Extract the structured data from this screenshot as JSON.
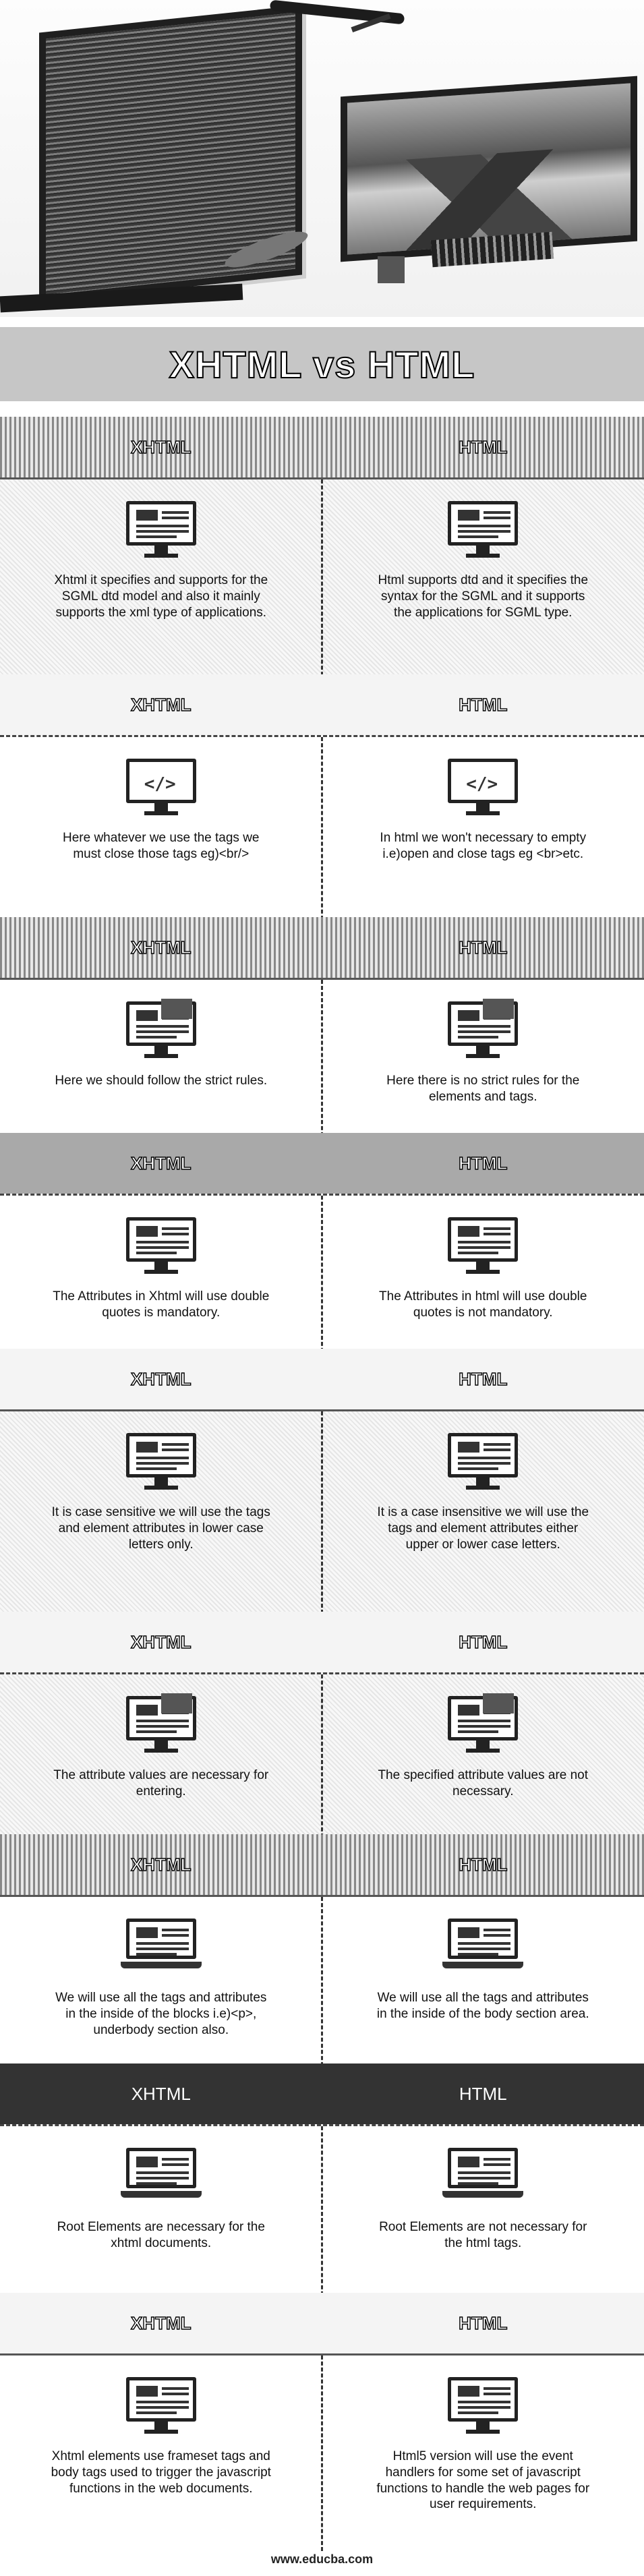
{
  "title": "XHTML vs HTML",
  "left_label": "XHTML",
  "right_label": "HTML",
  "rows": [
    {
      "left": "Xhtml it specifies and supports for the SGML dtd model and also it mainly supports the xml type of applications.",
      "right": "Html supports dtd and it specifies the syntax for the SGML and it supports the applications for SGML type.",
      "icon": "monitor-icon"
    },
    {
      "left": "Here whatever we use the tags we must close those tags eg)<br/>",
      "right": "In html we won't necessary to empty i.e)open and close tags eg <br>etc.",
      "icon": "code-icon"
    },
    {
      "left": "Here we should follow the strict rules.",
      "right": "Here there is no strict rules for the elements and tags.",
      "icon": "computer-flag-icon"
    },
    {
      "left": "The Attributes in Xhtml will use double quotes is mandatory.",
      "right": "The Attributes in html will use double quotes is not mandatory.",
      "icon": "document-lines-icon"
    },
    {
      "left": "It is case sensitive we will use the tags and element attributes in lower case letters only.",
      "right": "It is a case insensitive we will use the tags and element attributes either upper or lower case letters.",
      "icon": "monitor-icon"
    },
    {
      "left": "The attribute values are necessary for entering.",
      "right": "The specified attribute values are not necessary.",
      "icon": "computer-flag-icon"
    },
    {
      "left": "We will use all the tags and attributes in the inside of the blocks i.e)<p>, underbody section also.",
      "right": "We will use all the tags and attributes in the inside of the body section area.",
      "icon": "laptop-icon"
    },
    {
      "left": "Root Elements are necessary for the xhtml documents.",
      "right": "Root Elements are not necessary for the html tags.",
      "icon": "laptop-icon"
    },
    {
      "left": "Xhtml elements use frameset tags and body tags used to trigger the javascript functions in the web documents.",
      "right": "Html5 version will use the event handlers for some set of javascript functions to handle the web pages for user requirements.",
      "icon": "monitor-icon"
    }
  ],
  "footer": "www.educba.com"
}
